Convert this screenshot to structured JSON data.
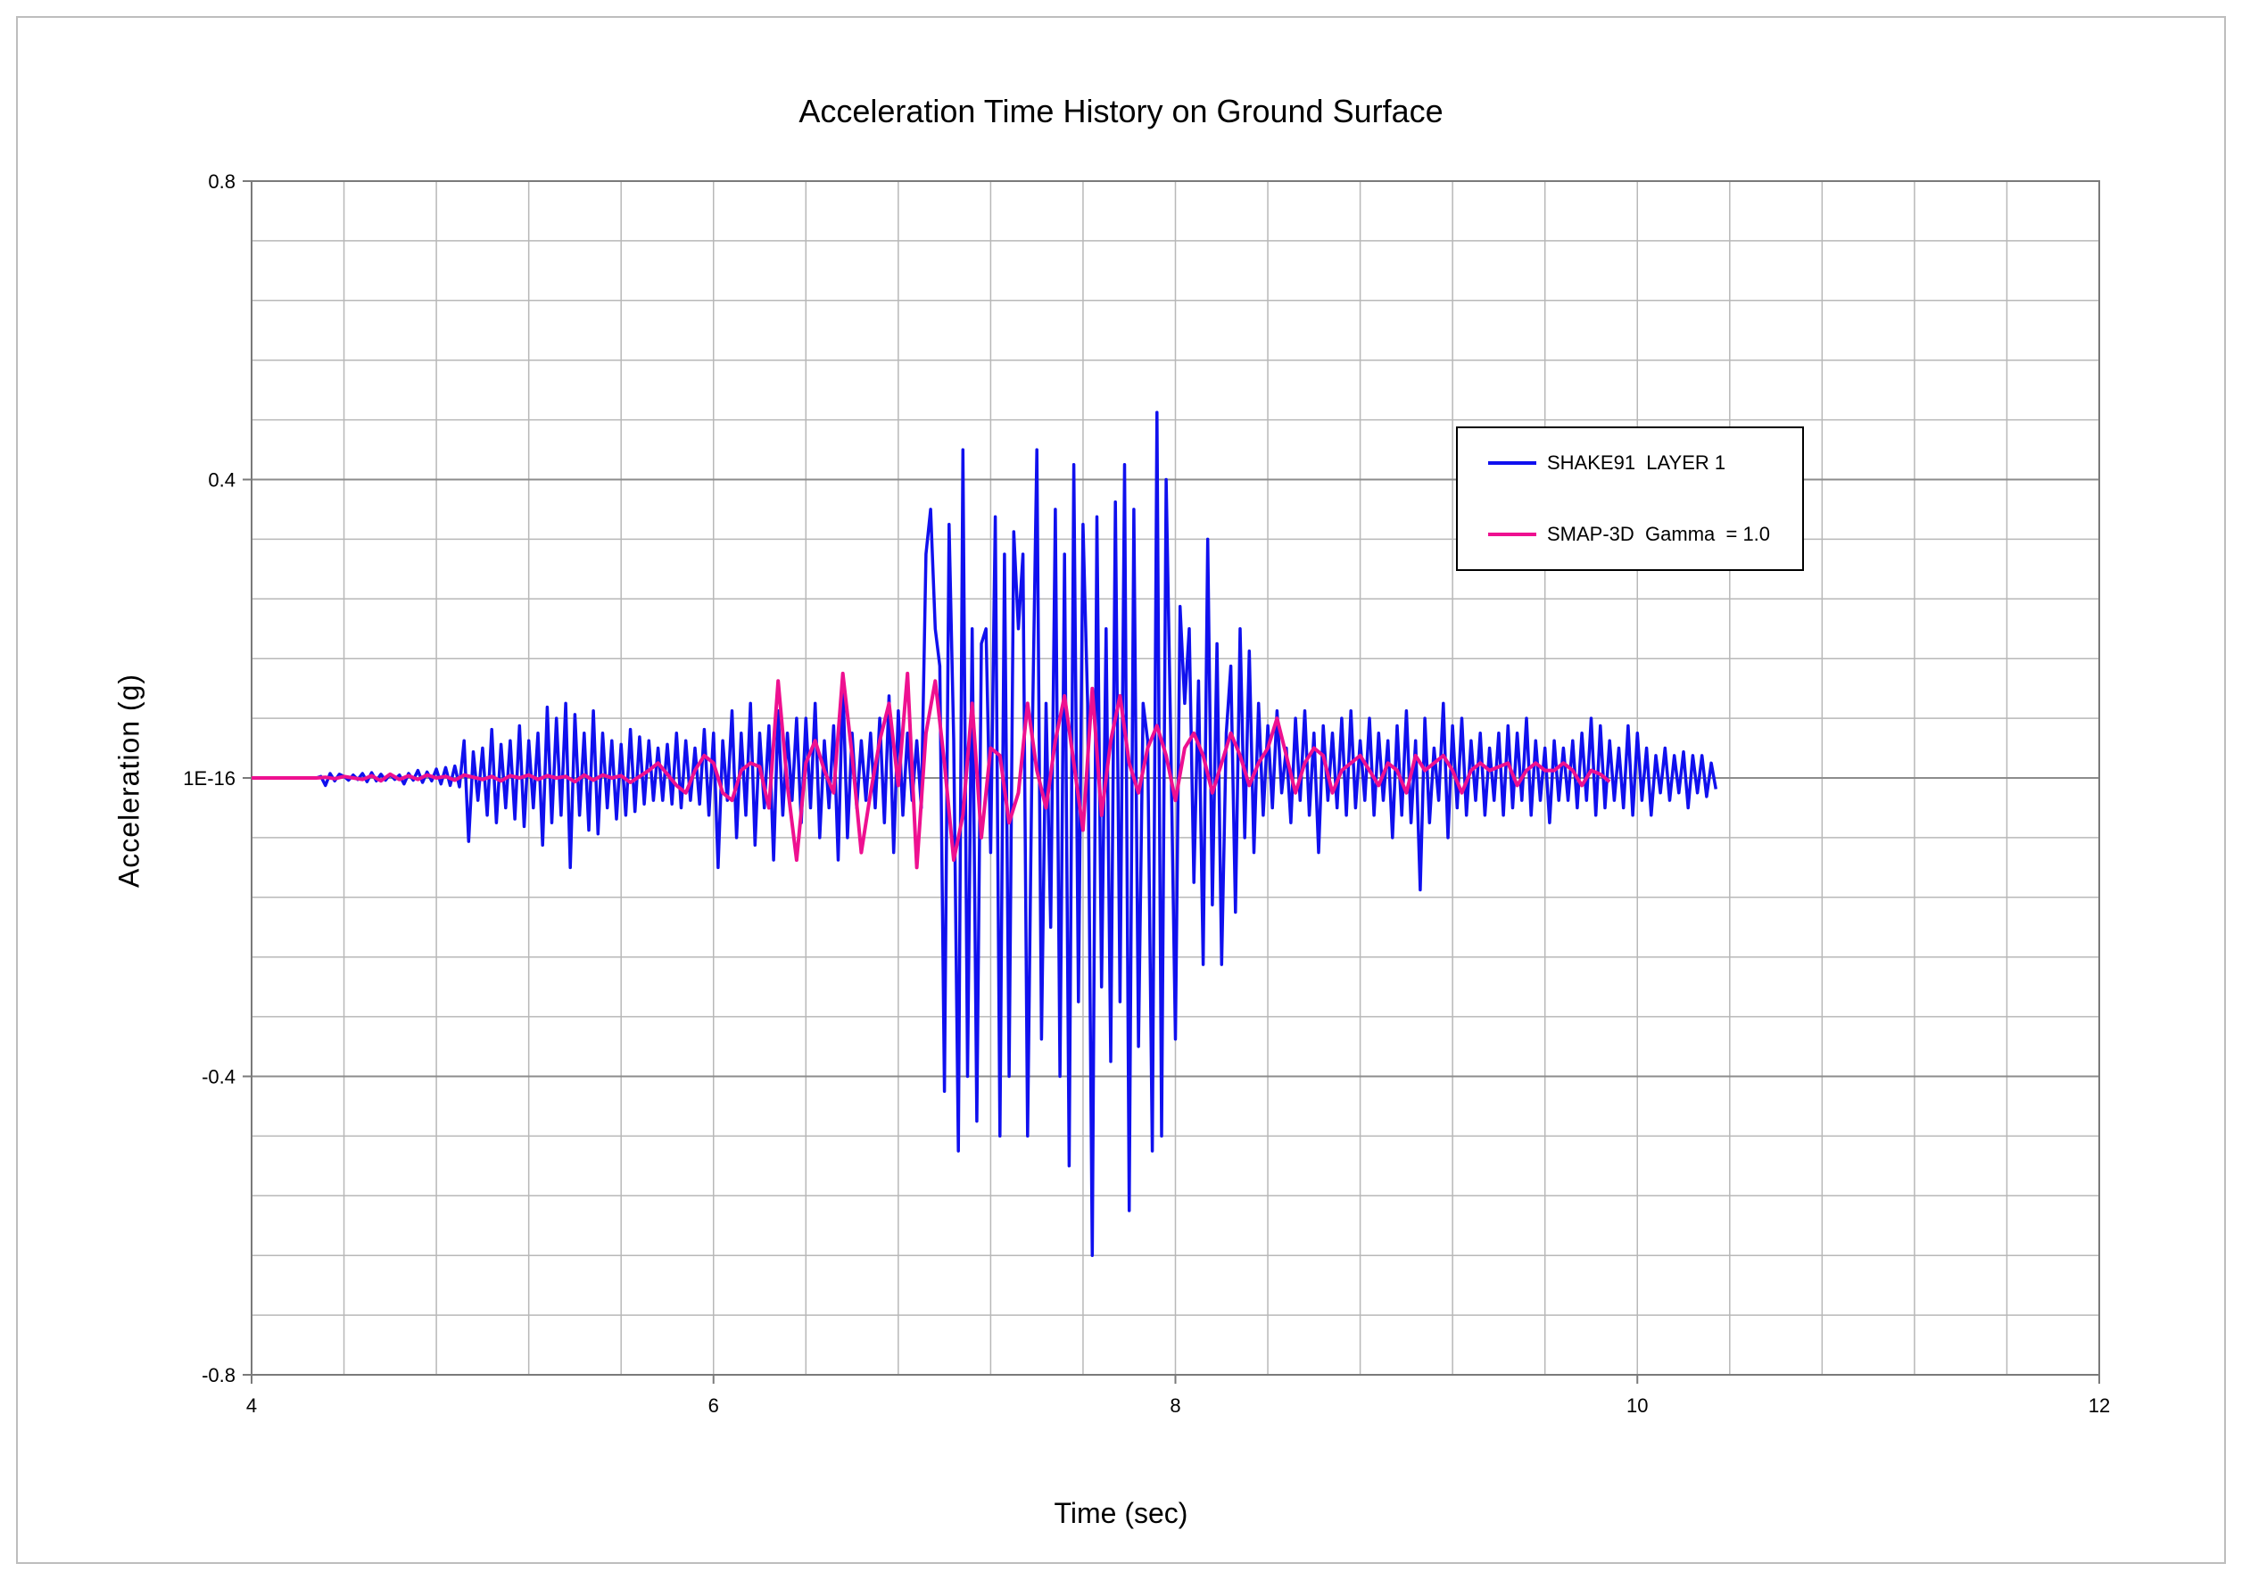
{
  "chart_data": {
    "type": "line",
    "title": "Acceleration Time History  on Ground Surface",
    "xlabel": "Time (sec)",
    "ylabel": "Acceleration (g)",
    "xlim": [
      4,
      12
    ],
    "ylim": [
      -0.8,
      0.8
    ],
    "x_ticks": [
      4,
      6,
      8,
      10,
      12
    ],
    "x_tick_labels": [
      "4",
      "6",
      "8",
      "10",
      "12"
    ],
    "x_minor_step": 0.4,
    "y_ticks": [
      -0.8,
      -0.4,
      0,
      0.4,
      0.8
    ],
    "y_tick_labels": [
      "-0.8",
      "-0.4",
      "1E-16",
      "0.4",
      "0.8"
    ],
    "y_minor_step": 0.08,
    "grid": true,
    "legend_position": "top-right",
    "series": [
      {
        "name": "SHAKE91  LAYER 1",
        "color": "#1010ee",
        "x_start": 4.0,
        "dx": 0.02,
        "values": [
          0,
          0,
          0,
          0,
          0,
          0,
          0,
          0,
          0,
          0,
          0,
          0,
          0,
          0,
          0,
          0.002,
          -0.01,
          0.006,
          -0.004,
          0.005,
          0.002,
          -0.003,
          0.004,
          -0.002,
          0.006,
          -0.005,
          0.007,
          -0.004,
          0.005,
          -0.003,
          0.005,
          -0.002,
          0.004,
          -0.008,
          0.006,
          -0.003,
          0.01,
          -0.006,
          0.008,
          -0.004,
          0.012,
          -0.008,
          0.014,
          -0.01,
          0.016,
          -0.012,
          0.05,
          -0.085,
          0.035,
          -0.03,
          0.04,
          -0.05,
          0.065,
          -0.06,
          0.045,
          -0.04,
          0.05,
          -0.055,
          0.07,
          -0.065,
          0.05,
          -0.04,
          0.06,
          -0.09,
          0.095,
          -0.06,
          0.08,
          -0.05,
          0.1,
          -0.12,
          0.085,
          -0.05,
          0.06,
          -0.07,
          0.09,
          -0.075,
          0.06,
          -0.04,
          0.05,
          -0.055,
          0.045,
          -0.05,
          0.065,
          -0.045,
          0.055,
          -0.035,
          0.05,
          -0.03,
          0.04,
          -0.03,
          0.045,
          -0.035,
          0.06,
          -0.04,
          0.05,
          -0.03,
          0.04,
          -0.035,
          0.065,
          -0.05,
          0.06,
          -0.12,
          0.05,
          -0.03,
          0.09,
          -0.08,
          0.06,
          -0.05,
          0.1,
          -0.09,
          0.06,
          -0.04,
          0.07,
          -0.11,
          0.09,
          -0.05,
          0.06,
          -0.03,
          0.08,
          -0.06,
          0.08,
          -0.04,
          0.1,
          -0.08,
          0.05,
          -0.04,
          0.07,
          -0.11,
          0.13,
          -0.08,
          0.06,
          -0.04,
          0.05,
          -0.03,
          0.06,
          -0.04,
          0.08,
          -0.06,
          0.11,
          -0.1,
          0.09,
          -0.05,
          0.06,
          -0.03,
          0.05,
          -0.04,
          0.3,
          0.36,
          0.2,
          0.15,
          -0.42,
          0.34,
          0.05,
          -0.5,
          0.44,
          -0.4,
          0.2,
          -0.46,
          0.18,
          0.2,
          -0.1,
          0.35,
          -0.48,
          0.3,
          -0.4,
          0.33,
          0.2,
          0.3,
          -0.48,
          0.05,
          0.44,
          -0.35,
          0.1,
          -0.2,
          0.36,
          -0.4,
          0.3,
          -0.52,
          0.42,
          -0.3,
          0.34,
          0.1,
          -0.64,
          0.35,
          -0.28,
          0.2,
          -0.38,
          0.37,
          -0.3,
          0.42,
          -0.58,
          0.36,
          -0.36,
          0.1,
          0.05,
          -0.5,
          0.49,
          -0.48,
          0.4,
          0.05,
          -0.35,
          0.23,
          0.1,
          0.2,
          -0.14,
          0.13,
          -0.25,
          0.32,
          -0.17,
          0.18,
          -0.25,
          0.06,
          0.15,
          -0.18,
          0.2,
          -0.08,
          0.17,
          -0.1,
          0.1,
          -0.05,
          0.07,
          -0.04,
          0.09,
          -0.02,
          0.04,
          -0.06,
          0.08,
          -0.03,
          0.09,
          -0.05,
          0.06,
          -0.1,
          0.07,
          -0.03,
          0.06,
          -0.04,
          0.08,
          -0.05,
          0.09,
          -0.04,
          0.05,
          -0.03,
          0.08,
          -0.05,
          0.06,
          -0.03,
          0.05,
          -0.08,
          0.07,
          -0.05,
          0.09,
          -0.06,
          0.05,
          -0.15,
          0.08,
          -0.06,
          0.04,
          -0.03,
          0.1,
          -0.08,
          0.07,
          -0.04,
          0.08,
          -0.05,
          0.05,
          -0.03,
          0.06,
          -0.05,
          0.04,
          -0.03,
          0.06,
          -0.05,
          0.07,
          -0.04,
          0.06,
          -0.03,
          0.08,
          -0.05,
          0.05,
          -0.03,
          0.04,
          -0.06,
          0.05,
          -0.03,
          0.04,
          -0.03,
          0.05,
          -0.04,
          0.06,
          -0.03,
          0.08,
          -0.05,
          0.07,
          -0.04,
          0.05,
          -0.03,
          0.04,
          -0.04,
          0.07,
          -0.05,
          0.06,
          -0.03,
          0.04,
          -0.05,
          0.03,
          -0.02,
          0.04,
          -0.03,
          0.03,
          -0.02,
          0.035,
          -0.04,
          0.03,
          -0.02,
          0.03,
          -0.025,
          0.02,
          -0.015
        ]
      },
      {
        "name": "SMAP-3D  Gamma  = 1.0",
        "color": "#ee1090",
        "x_start": 4.0,
        "dx": 0.04,
        "values": [
          0,
          0,
          0,
          0,
          0,
          0,
          0,
          0,
          0.001,
          -0.001,
          0.002,
          0,
          -0.002,
          0.003,
          -0.004,
          0.005,
          -0.002,
          0.003,
          -0.002,
          0.004,
          0,
          0.002,
          -0.003,
          0.004,
          0.001,
          -0.002,
          0.002,
          -0.004,
          0.003,
          0,
          0.004,
          -0.002,
          0.003,
          0,
          0.002,
          -0.005,
          0.004,
          -0.003,
          0.004,
          0,
          0.003,
          -0.006,
          0.002,
          0.01,
          0.02,
          0.005,
          -0.01,
          -0.02,
          0.01,
          0.03,
          0.02,
          -0.02,
          -0.03,
          0.01,
          0.02,
          0.015,
          -0.04,
          0.13,
          -0.01,
          -0.11,
          0.02,
          0.05,
          0.01,
          -0.02,
          0.14,
          0.03,
          -0.1,
          -0.02,
          0.05,
          0.1,
          -0.01,
          0.14,
          -0.12,
          0.06,
          0.13,
          0.02,
          -0.11,
          -0.05,
          0.1,
          -0.08,
          0.04,
          0.03,
          -0.06,
          -0.02,
          0.1,
          0.01,
          -0.04,
          0.05,
          0.11,
          0.02,
          -0.07,
          0.12,
          -0.05,
          0.05,
          0.11,
          0.02,
          -0.02,
          0.04,
          0.07,
          0.03,
          -0.03,
          0.04,
          0.06,
          0.03,
          -0.02,
          0.02,
          0.06,
          0.03,
          -0.01,
          0.02,
          0.04,
          0.08,
          0.03,
          -0.02,
          0.02,
          0.04,
          0.03,
          -0.02,
          0.01,
          0.02,
          0.03,
          0.01,
          -0.01,
          0.02,
          0.01,
          -0.02,
          0.03,
          0.01,
          0.02,
          0.03,
          0.01,
          -0.02,
          0.01,
          0.02,
          0.01,
          0.015,
          0.02,
          -0.01,
          0.01,
          0.02,
          0.01,
          0.01,
          0.02,
          0.01,
          -0.01,
          0.01,
          0.005,
          -0.005
        ]
      }
    ]
  }
}
